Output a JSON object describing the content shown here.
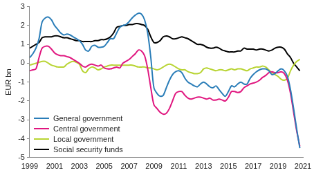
{
  "chart_data": {
    "type": "line",
    "y_label": "EUR bn",
    "x": [
      1999,
      1999.25,
      1999.5,
      1999.75,
      2000,
      2000.25,
      2000.5,
      2000.75,
      2001,
      2001.25,
      2001.5,
      2001.75,
      2002,
      2002.25,
      2002.5,
      2002.75,
      2003,
      2003.25,
      2003.5,
      2003.75,
      2004,
      2004.25,
      2004.5,
      2004.75,
      2005,
      2005.25,
      2005.5,
      2005.75,
      2006,
      2006.25,
      2006.5,
      2006.75,
      2007,
      2007.25,
      2007.5,
      2007.75,
      2008,
      2008.25,
      2008.5,
      2008.75,
      2009,
      2009.25,
      2009.5,
      2009.75,
      2010,
      2010.25,
      2010.5,
      2010.75,
      2011,
      2011.25,
      2011.5,
      2011.75,
      2012,
      2012.25,
      2012.5,
      2012.75,
      2013,
      2013.25,
      2013.5,
      2013.75,
      2014,
      2014.25,
      2014.5,
      2014.75,
      2015,
      2015.25,
      2015.5,
      2015.75,
      2016,
      2016.25,
      2016.5,
      2016.75,
      2017,
      2017.25,
      2017.5,
      2017.75,
      2018,
      2018.25,
      2018.5,
      2018.75,
      2019,
      2019.25,
      2019.5,
      2019.75,
      2020,
      2020.25,
      2020.5,
      2020.75
    ],
    "series": [
      {
        "name": "General government",
        "color": "#2a7db8",
        "values": [
          0.3,
          0.5,
          0.8,
          1.3,
          2.2,
          2.4,
          2.45,
          2.3,
          2.0,
          1.8,
          1.6,
          1.5,
          1.55,
          1.5,
          1.4,
          1.3,
          1.2,
          1.0,
          0.7,
          0.65,
          0.9,
          0.95,
          0.85,
          0.85,
          0.9,
          1.1,
          1.3,
          1.3,
          1.6,
          1.9,
          2.0,
          2.05,
          2.2,
          2.4,
          2.55,
          2.65,
          2.6,
          2.3,
          1.6,
          0.3,
          -1.3,
          -1.6,
          -1.75,
          -1.7,
          -1.3,
          -0.9,
          -0.6,
          -0.45,
          -0.4,
          -0.5,
          -0.8,
          -1.0,
          -1.1,
          -1.2,
          -1.25,
          -1.1,
          -1.0,
          -1.1,
          -1.25,
          -1.3,
          -1.2,
          -1.4,
          -1.6,
          -1.75,
          -1.5,
          -1.2,
          -1.25,
          -1.1,
          -1.0,
          -1.1,
          -1.1,
          -0.8,
          -0.6,
          -0.45,
          -0.35,
          -0.3,
          -0.3,
          -0.4,
          -0.6,
          -0.55,
          -0.4,
          -0.3,
          -0.4,
          -0.7,
          -1.4,
          -2.4,
          -3.5,
          -4.5
        ]
      },
      {
        "name": "Central government",
        "color": "#e0167f",
        "values": [
          -0.4,
          -0.35,
          -0.3,
          0.3,
          0.8,
          0.9,
          0.9,
          0.75,
          0.55,
          0.45,
          0.4,
          0.4,
          0.35,
          0.3,
          0.2,
          0.1,
          0.0,
          -0.15,
          -0.2,
          -0.1,
          -0.05,
          -0.1,
          -0.15,
          -0.1,
          -0.25,
          -0.3,
          -0.3,
          -0.25,
          -0.2,
          -0.25,
          0.0,
          0.1,
          0.2,
          0.35,
          0.5,
          0.7,
          0.65,
          0.4,
          -0.3,
          -1.3,
          -2.2,
          -2.4,
          -2.6,
          -2.7,
          -2.65,
          -2.4,
          -2.0,
          -1.6,
          -1.5,
          -1.5,
          -1.7,
          -1.85,
          -1.9,
          -1.85,
          -1.8,
          -1.8,
          -1.85,
          -1.9,
          -1.85,
          -1.95,
          -1.95,
          -1.9,
          -1.95,
          -2.0,
          -1.8,
          -1.5,
          -1.5,
          -1.55,
          -1.5,
          -1.3,
          -1.2,
          -1.1,
          -1.05,
          -1.0,
          -0.9,
          -0.75,
          -0.65,
          -0.5,
          -0.45,
          -0.5,
          -0.5,
          -0.45,
          -0.55,
          -0.9,
          -1.6,
          -2.6,
          -3.6,
          -4.4
        ]
      },
      {
        "name": "Local government",
        "color": "#b8d432",
        "values": [
          -0.1,
          -0.05,
          0.0,
          0.05,
          0.1,
          0.1,
          0.0,
          -0.1,
          -0.15,
          -0.2,
          -0.2,
          -0.2,
          -0.05,
          0.05,
          0.1,
          0.05,
          -0.05,
          -0.4,
          -0.5,
          -0.3,
          -0.2,
          -0.25,
          -0.35,
          -0.3,
          -0.2,
          -0.15,
          -0.1,
          -0.1,
          -0.1,
          -0.1,
          -0.1,
          -0.1,
          -0.1,
          -0.1,
          -0.15,
          -0.2,
          -0.2,
          -0.2,
          -0.25,
          -0.25,
          -0.3,
          -0.35,
          -0.3,
          -0.2,
          -0.1,
          -0.05,
          -0.1,
          -0.2,
          -0.3,
          -0.35,
          -0.35,
          -0.45,
          -0.5,
          -0.55,
          -0.55,
          -0.5,
          -0.3,
          -0.25,
          -0.3,
          -0.35,
          -0.4,
          -0.35,
          -0.35,
          -0.4,
          -0.35,
          -0.3,
          -0.35,
          -0.3,
          -0.3,
          -0.35,
          -0.4,
          -0.3,
          -0.25,
          -0.2,
          -0.2,
          -0.15,
          -0.2,
          -0.35,
          -0.5,
          -0.6,
          -0.7,
          -0.85,
          -0.9,
          -0.8,
          -0.4,
          -0.1,
          0.1,
          0.2
        ]
      },
      {
        "name": "Social security funds",
        "color": "#000000",
        "values": [
          0.8,
          0.9,
          1.0,
          1.1,
          1.35,
          1.4,
          1.4,
          1.4,
          1.45,
          1.45,
          1.4,
          1.35,
          1.35,
          1.3,
          1.25,
          1.2,
          1.2,
          1.15,
          1.15,
          1.15,
          1.15,
          1.2,
          1.2,
          1.25,
          1.25,
          1.3,
          1.4,
          1.6,
          1.9,
          1.95,
          2.0,
          2.0,
          2.05,
          2.05,
          2.1,
          2.1,
          2.05,
          2.0,
          1.8,
          1.4,
          1.1,
          1.1,
          1.2,
          1.4,
          1.45,
          1.4,
          1.3,
          1.3,
          1.35,
          1.4,
          1.35,
          1.3,
          1.2,
          1.1,
          1.0,
          1.0,
          0.95,
          0.85,
          0.8,
          0.8,
          0.85,
          0.8,
          0.7,
          0.65,
          0.6,
          0.6,
          0.6,
          0.65,
          0.65,
          0.8,
          0.75,
          0.75,
          0.75,
          0.7,
          0.75,
          0.75,
          0.7,
          0.65,
          0.7,
          0.8,
          0.85,
          0.85,
          0.75,
          0.5,
          0.3,
          0.0,
          -0.2,
          -0.4
        ]
      }
    ],
    "xlim": [
      1999,
      2021
    ],
    "xticks": [
      1999,
      2001,
      2003,
      2005,
      2007,
      2009,
      2011,
      2013,
      2015,
      2017,
      2019,
      2021
    ],
    "ylim": [
      -5,
      3
    ],
    "yticks": [
      -5,
      -4,
      -3,
      -2,
      -1,
      0,
      1,
      2,
      3
    ],
    "grid": false,
    "legend": "lower left"
  }
}
